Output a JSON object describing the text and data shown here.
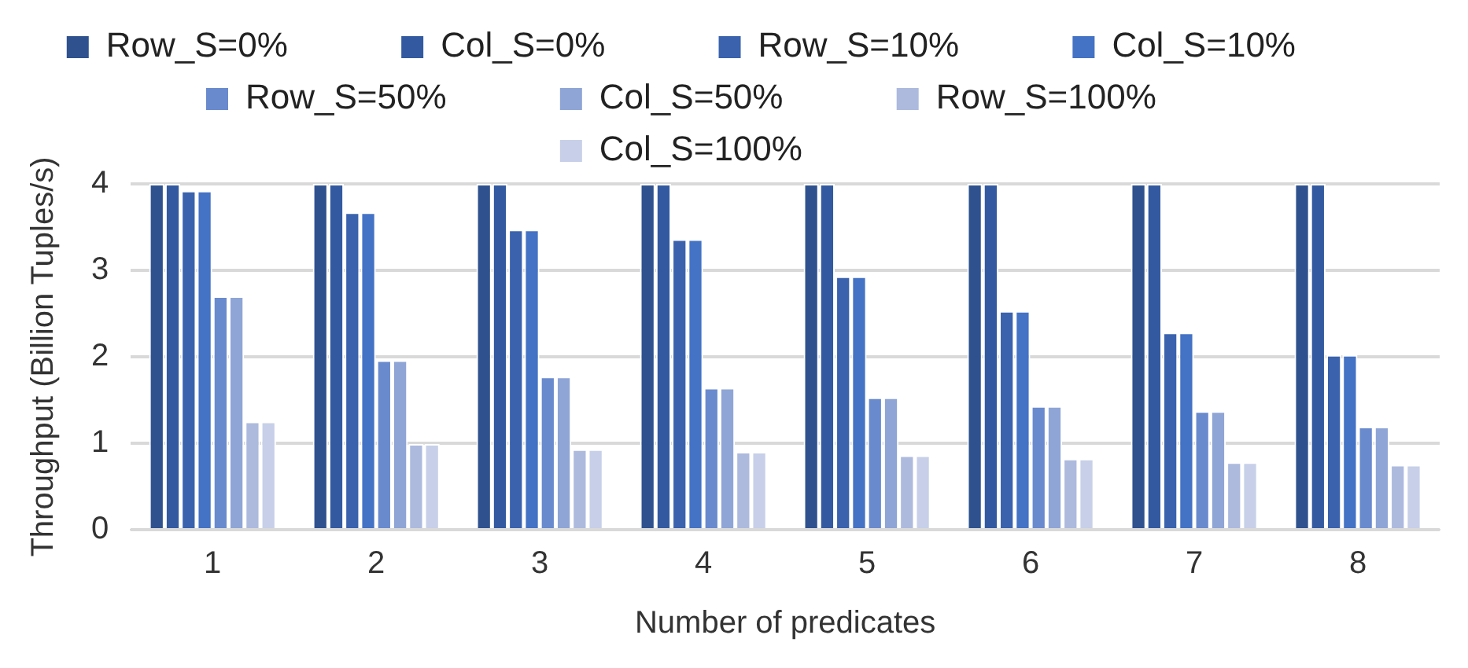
{
  "chart_data": {
    "type": "bar",
    "xlabel": "Number of predicates",
    "ylabel": "Throughput (Billion Tuples/s)",
    "categories": [
      "1",
      "2",
      "3",
      "4",
      "5",
      "6",
      "7",
      "8"
    ],
    "series": [
      {
        "name": "Row_S=0%",
        "color": "#2f528f",
        "values": [
          4,
          4,
          4,
          4,
          4,
          4,
          4,
          4
        ]
      },
      {
        "name": "Col_S=0%",
        "color": "#335aa0",
        "values": [
          4,
          4,
          4,
          4,
          4,
          4,
          4,
          4
        ]
      },
      {
        "name": "Row_S=10%",
        "color": "#3a62ad",
        "values": [
          3.92,
          3.67,
          3.47,
          3.36,
          2.93,
          2.53,
          2.28,
          2.02
        ]
      },
      {
        "name": "Col_S=10%",
        "color": "#4472c4",
        "values": [
          3.92,
          3.67,
          3.47,
          3.36,
          2.93,
          2.53,
          2.28,
          2.02
        ]
      },
      {
        "name": "Row_S=50%",
        "color": "#6a8ace",
        "values": [
          2.7,
          1.96,
          1.77,
          1.64,
          1.53,
          1.43,
          1.37,
          1.19
        ]
      },
      {
        "name": "Col_S=50%",
        "color": "#8fa5d6",
        "values": [
          2.7,
          1.96,
          1.77,
          1.64,
          1.53,
          1.43,
          1.37,
          1.19
        ]
      },
      {
        "name": "Row_S=100%",
        "color": "#adbade",
        "values": [
          1.25,
          0.99,
          0.93,
          0.9,
          0.86,
          0.82,
          0.78,
          0.75
        ]
      },
      {
        "name": "Col_S=100%",
        "color": "#c7d0e8",
        "values": [
          1.25,
          0.99,
          0.93,
          0.9,
          0.86,
          0.82,
          0.78,
          0.75
        ]
      }
    ],
    "ylim": [
      0,
      4
    ],
    "yticks": [
      0,
      1,
      2,
      3,
      4
    ],
    "grid": "y",
    "legend": "top"
  }
}
